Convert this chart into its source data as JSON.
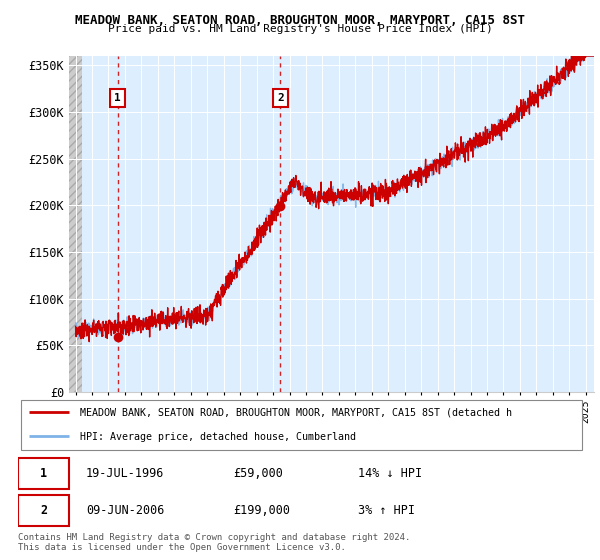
{
  "title1": "MEADOW BANK, SEATON ROAD, BROUGHTON MOOR, MARYPORT, CA15 8ST",
  "title2": "Price paid vs. HM Land Registry's House Price Index (HPI)",
  "legend_line1": "MEADOW BANK, SEATON ROAD, BROUGHTON MOOR, MARYPORT, CA15 8ST (detached h",
  "legend_line2": "HPI: Average price, detached house, Cumberland",
  "footnote1": "Contains HM Land Registry data © Crown copyright and database right 2024.",
  "footnote2": "This data is licensed under the Open Government Licence v3.0.",
  "sale1_date": "19-JUL-1996",
  "sale1_price": 59000,
  "sale1_price_str": "£59,000",
  "sale1_hpi": "14% ↓ HPI",
  "sale2_date": "09-JUN-2006",
  "sale2_price": 199000,
  "sale2_price_str": "£199,000",
  "sale2_hpi": "3% ↑ HPI",
  "ylim": [
    0,
    360000
  ],
  "yticks": [
    0,
    50000,
    100000,
    150000,
    200000,
    250000,
    300000,
    350000
  ],
  "ytick_labels": [
    "£0",
    "£50K",
    "£100K",
    "£150K",
    "£200K",
    "£250K",
    "£300K",
    "£350K"
  ],
  "hpi_color": "#7fb3e8",
  "price_color": "#CC0000",
  "vline_color": "#CC0000",
  "plot_bg_color": "#ddeeff",
  "hatch_bg_color": "#cccccc",
  "xlim_start": 1993.6,
  "xlim_end": 2025.5,
  "hatch_end": 1994.42,
  "sale1_x": 1996.55,
  "sale2_x": 2006.44
}
